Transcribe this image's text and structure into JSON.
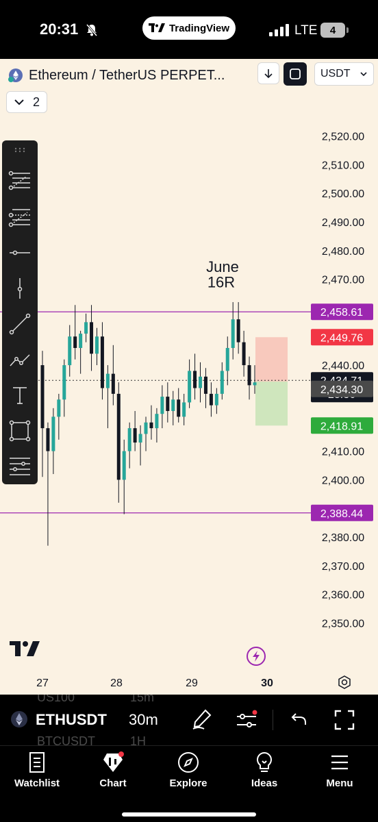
{
  "status_bar": {
    "time": "20:31",
    "pill_label": "TradingView",
    "network": "LTE",
    "battery": "4"
  },
  "header": {
    "symbol_title": "Ethereum / TetherUS PERPET...",
    "currency": "USDT",
    "indicators_count": "2"
  },
  "chart_data": {
    "type": "candlestick",
    "timeframe": "30m",
    "ylim": [
      2342,
      2528
    ],
    "y_ticks": [
      "2,520.00",
      "2,510.00",
      "2,500.00",
      "2,490.00",
      "2,480.00",
      "2,470.00",
      "2,440.00",
      "2,410.00",
      "2,400.00",
      "2,380.00",
      "2,370.00",
      "2,360.00",
      "2,350.00"
    ],
    "y_tick_values": [
      2520,
      2510,
      2500,
      2490,
      2480,
      2470,
      2440,
      2410,
      2400,
      2380,
      2370,
      2360,
      2350
    ],
    "x_ticks": [
      "27",
      "28",
      "29",
      "30"
    ],
    "x_tick_active": "30",
    "annotation": {
      "line1": "June",
      "line2": "16R"
    },
    "horizontal_lines": [
      {
        "value": 2458.61,
        "label": "2,458.61",
        "color": "#9c27b0"
      },
      {
        "value": 2388.44,
        "label": "2,388.44",
        "color": "#9c27b0"
      }
    ],
    "price_labels": [
      {
        "value": 2449.76,
        "label": "2,449.76",
        "color": "#f23645"
      },
      {
        "value": 2434.71,
        "label": "2,434.71",
        "countdown": "28:36",
        "color": "#131722"
      },
      {
        "value": 2434.3,
        "label": "2,434.30",
        "color": "#4a4a4a"
      },
      {
        "value": 2418.91,
        "label": "2,418.91",
        "color": "#2eab3c"
      }
    ],
    "position": {
      "entry": 2434.3,
      "stop": 2449.76,
      "target": 2418.91
    },
    "candles": [
      {
        "o": 2440,
        "h": 2445,
        "l": 2401,
        "c": 2418
      },
      {
        "o": 2418,
        "h": 2420,
        "l": 2377,
        "c": 2410
      },
      {
        "o": 2410,
        "h": 2425,
        "l": 2402,
        "c": 2422
      },
      {
        "o": 2422,
        "h": 2430,
        "l": 2414,
        "c": 2428
      },
      {
        "o": 2428,
        "h": 2442,
        "l": 2422,
        "c": 2440
      },
      {
        "o": 2440,
        "h": 2454,
        "l": 2436,
        "c": 2450
      },
      {
        "o": 2450,
        "h": 2461,
        "l": 2442,
        "c": 2446
      },
      {
        "o": 2446,
        "h": 2452,
        "l": 2437,
        "c": 2451
      },
      {
        "o": 2451,
        "h": 2458,
        "l": 2448,
        "c": 2455
      },
      {
        "o": 2455,
        "h": 2461,
        "l": 2438,
        "c": 2444
      },
      {
        "o": 2444,
        "h": 2453,
        "l": 2440,
        "c": 2450
      },
      {
        "o": 2450,
        "h": 2455,
        "l": 2428,
        "c": 2432
      },
      {
        "o": 2432,
        "h": 2440,
        "l": 2418,
        "c": 2437
      },
      {
        "o": 2437,
        "h": 2447,
        "l": 2426,
        "c": 2430
      },
      {
        "o": 2430,
        "h": 2434,
        "l": 2392,
        "c": 2400
      },
      {
        "o": 2400,
        "h": 2414,
        "l": 2388,
        "c": 2410
      },
      {
        "o": 2410,
        "h": 2420,
        "l": 2404,
        "c": 2418
      },
      {
        "o": 2418,
        "h": 2424,
        "l": 2410,
        "c": 2413
      },
      {
        "o": 2413,
        "h": 2419,
        "l": 2405,
        "c": 2416
      },
      {
        "o": 2416,
        "h": 2422,
        "l": 2410,
        "c": 2420
      },
      {
        "o": 2420,
        "h": 2426,
        "l": 2414,
        "c": 2418
      },
      {
        "o": 2418,
        "h": 2425,
        "l": 2413,
        "c": 2423
      },
      {
        "o": 2423,
        "h": 2433,
        "l": 2418,
        "c": 2429
      },
      {
        "o": 2429,
        "h": 2434,
        "l": 2420,
        "c": 2424
      },
      {
        "o": 2424,
        "h": 2431,
        "l": 2419,
        "c": 2428
      },
      {
        "o": 2428,
        "h": 2432,
        "l": 2420,
        "c": 2422
      },
      {
        "o": 2422,
        "h": 2430,
        "l": 2419,
        "c": 2427
      },
      {
        "o": 2427,
        "h": 2442,
        "l": 2425,
        "c": 2438
      },
      {
        "o": 2438,
        "h": 2444,
        "l": 2428,
        "c": 2432
      },
      {
        "o": 2432,
        "h": 2441,
        "l": 2427,
        "c": 2436
      },
      {
        "o": 2436,
        "h": 2439,
        "l": 2425,
        "c": 2430
      },
      {
        "o": 2430,
        "h": 2434,
        "l": 2422,
        "c": 2426
      },
      {
        "o": 2426,
        "h": 2432,
        "l": 2423,
        "c": 2430
      },
      {
        "o": 2430,
        "h": 2441,
        "l": 2428,
        "c": 2438
      },
      {
        "o": 2438,
        "h": 2450,
        "l": 2433,
        "c": 2446
      },
      {
        "o": 2446,
        "h": 2462,
        "l": 2442,
        "c": 2456
      },
      {
        "o": 2456,
        "h": 2462,
        "l": 2444,
        "c": 2448
      },
      {
        "o": 2448,
        "h": 2452,
        "l": 2436,
        "c": 2440
      },
      {
        "o": 2440,
        "h": 2443,
        "l": 2428,
        "c": 2433
      },
      {
        "o": 2433,
        "h": 2440,
        "l": 2430,
        "c": 2434
      }
    ]
  },
  "symbol_bar": {
    "symbol": "ETHUSDT",
    "interval": "30m",
    "ghost_top_symbol": "US100",
    "ghost_top_interval": "15m",
    "ghost_bottom_symbol": "BTCUSDT",
    "ghost_bottom_interval": "1H"
  },
  "nav": {
    "watchlist": "Watchlist",
    "chart": "Chart",
    "explore": "Explore",
    "ideas": "Ideas",
    "menu": "Menu"
  },
  "colors": {
    "background": "#fbf2e3",
    "up_candle": "#26a69a",
    "accent_purple": "#9c27b0",
    "loss_zone": "#f8c9bd",
    "profit_zone": "#cfe6bd"
  }
}
